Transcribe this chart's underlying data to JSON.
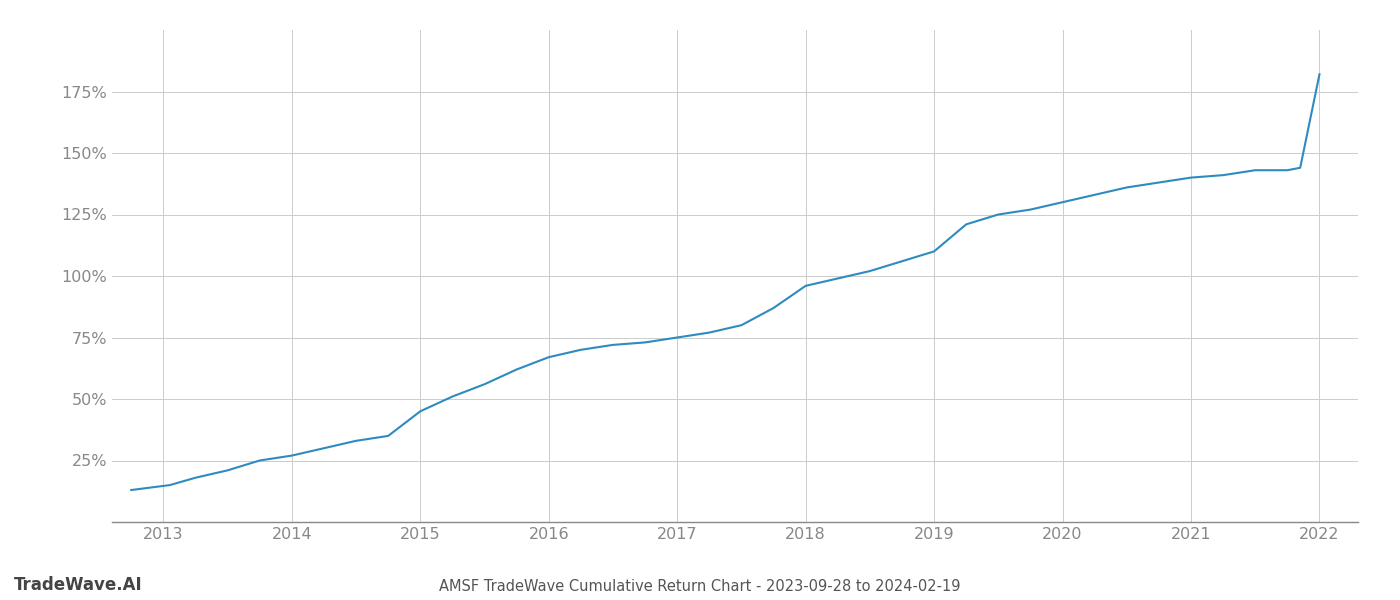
{
  "title": "AMSF TradeWave Cumulative Return Chart - 2023-09-28 to 2024-02-19",
  "watermark": "TradeWave.AI",
  "line_color": "#2e8bc0",
  "background_color": "#ffffff",
  "grid_color": "#cccccc",
  "x_years": [
    2013,
    2014,
    2015,
    2016,
    2017,
    2018,
    2019,
    2020,
    2021,
    2022
  ],
  "x_values": [
    2012.75,
    2013.05,
    2013.25,
    2013.5,
    2013.75,
    2014.0,
    2014.25,
    2014.5,
    2014.75,
    2015.0,
    2015.25,
    2015.5,
    2015.75,
    2016.0,
    2016.25,
    2016.5,
    2016.75,
    2017.0,
    2017.25,
    2017.5,
    2017.75,
    2018.0,
    2018.25,
    2018.5,
    2018.75,
    2019.0,
    2019.25,
    2019.5,
    2019.75,
    2020.0,
    2020.25,
    2020.5,
    2020.75,
    2021.0,
    2021.25,
    2021.5,
    2021.75,
    2021.85,
    2022.0
  ],
  "y_values": [
    13,
    15,
    18,
    21,
    25,
    27,
    30,
    33,
    35,
    45,
    51,
    56,
    62,
    67,
    70,
    72,
    73,
    75,
    77,
    80,
    87,
    96,
    99,
    102,
    106,
    110,
    121,
    125,
    127,
    130,
    133,
    136,
    138,
    140,
    141,
    143,
    143,
    144,
    182
  ],
  "yticks": [
    25,
    50,
    75,
    100,
    125,
    150,
    175
  ],
  "ylim": [
    0,
    200
  ],
  "xlim": [
    2012.6,
    2022.3
  ],
  "title_fontsize": 10.5,
  "tick_fontsize": 11.5,
  "watermark_fontsize": 12,
  "axis_color": "#888888",
  "tick_label_color": "#888888",
  "title_color": "#555555"
}
